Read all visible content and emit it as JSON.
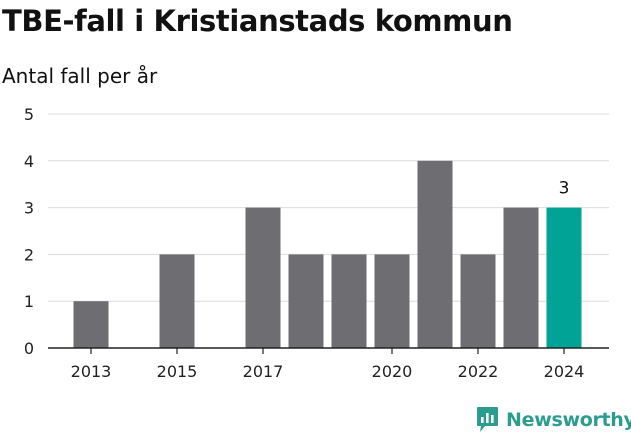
{
  "header": {
    "title": "TBE-fall i Kristianstads kommun",
    "subtitle": "Antal fall per år"
  },
  "brand": {
    "name": "Newsworthy",
    "color": "#2a9d8f"
  },
  "colors": {
    "bar": "#6d6d72",
    "highlight": "#00a396",
    "grid": "#dcdcdc",
    "axis": "#222222"
  },
  "chart_data": {
    "type": "bar",
    "title": "TBE-fall i Kristianstads kommun",
    "subtitle": "Antal fall per år",
    "xlabel": "",
    "ylabel": "",
    "categories": [
      "2013",
      "2014",
      "2015",
      "2016",
      "2017",
      "2018",
      "2019",
      "2020",
      "2021",
      "2022",
      "2023",
      "2024"
    ],
    "values": [
      1,
      0,
      2,
      0,
      3,
      2,
      2,
      2,
      4,
      2,
      3,
      3
    ],
    "x_tick_labels": [
      "2013",
      "2015",
      "2017",
      "2020",
      "2022",
      "2024"
    ],
    "y_ticks": [
      0,
      1,
      2,
      3,
      4,
      5
    ],
    "ylim": [
      0,
      5
    ],
    "grid": true,
    "highlight": {
      "category": "2024",
      "label": "3"
    }
  }
}
